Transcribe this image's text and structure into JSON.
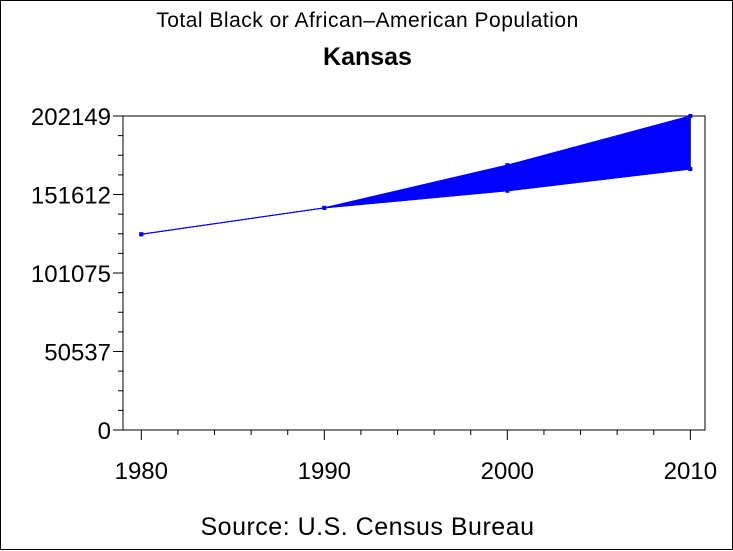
{
  "chart_data": {
    "type": "line",
    "title": "Total Black or African–American Population",
    "subtitle": "Kansas",
    "source": "Source: U.S. Census Bureau",
    "xlabel": "",
    "ylabel": "",
    "x_ticks": [
      "1980",
      "1990",
      "2000",
      "2010"
    ],
    "y_ticks": [
      "0",
      "50537",
      "101075",
      "151612",
      "202149"
    ],
    "xlim": [
      1979,
      2010.8
    ],
    "ylim": [
      0,
      202149
    ],
    "grid": false,
    "legend": "none",
    "series_color": "#0000ff",
    "series": [
      {
        "x": [
          1980,
          1990,
          2000,
          2010
        ],
        "y": [
          126000,
          143000,
          154000,
          168000
        ]
      },
      {
        "x": [
          1980,
          1990,
          2000,
          2010
        ],
        "y": [
          126000,
          143000,
          170500,
          202149
        ]
      }
    ]
  }
}
